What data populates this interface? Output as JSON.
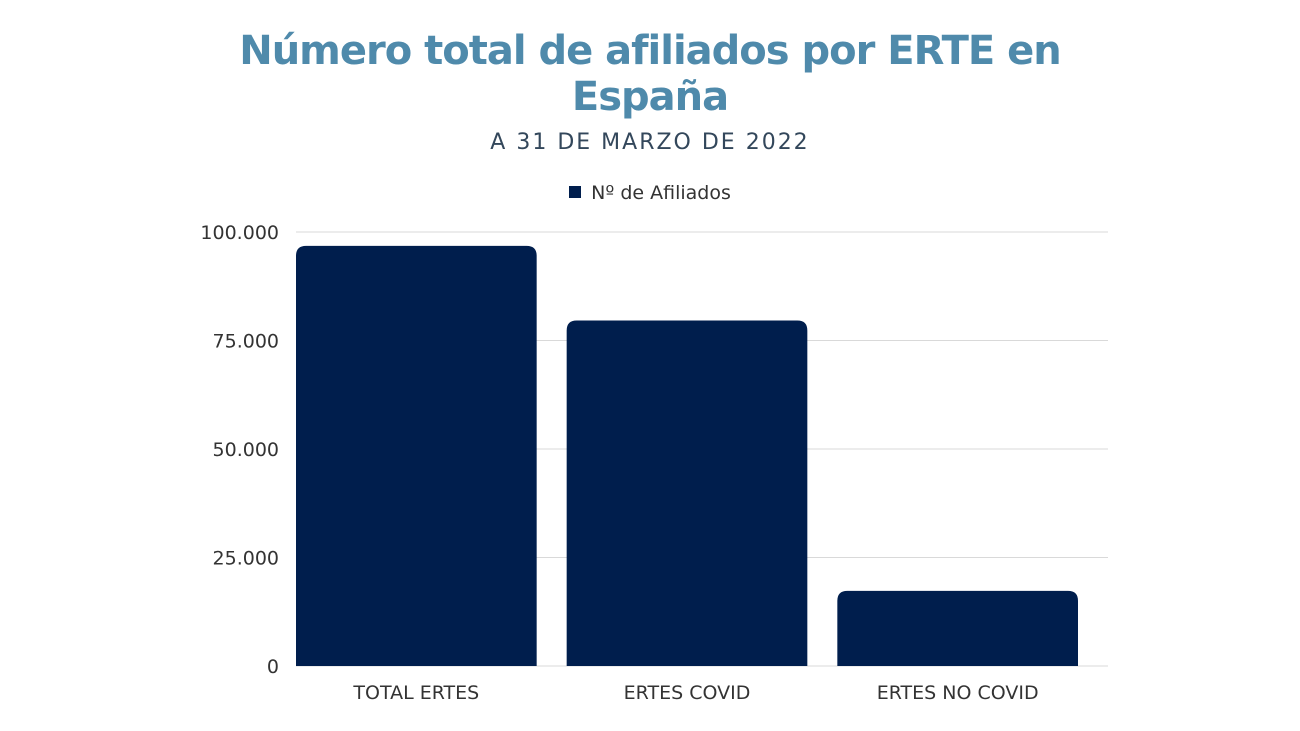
{
  "chart_data": {
    "type": "bar",
    "title_lines": [
      "Número total de afiliados por ERTE en",
      "España"
    ],
    "subtitle": "A 31 DE MARZO DE 2022",
    "categories": [
      "TOTAL ERTES",
      "ERTES COVID",
      "ERTES NO COVID"
    ],
    "series": [
      {
        "name": "Nº de Afiliados",
        "values": [
          96800,
          79600,
          17300
        ],
        "color": "#001e4d"
      }
    ],
    "yticks": [
      "0",
      "25.000",
      "50.000",
      "75.000",
      "100.000"
    ],
    "ytick_values": [
      0,
      25000,
      50000,
      75000,
      100000
    ],
    "ylim": [
      0,
      100000
    ],
    "grid": true,
    "legend_position": "top-center",
    "colors": {
      "title": "#4f8aab",
      "bar": "#001e4d",
      "grid": "#d9d9d9"
    }
  }
}
